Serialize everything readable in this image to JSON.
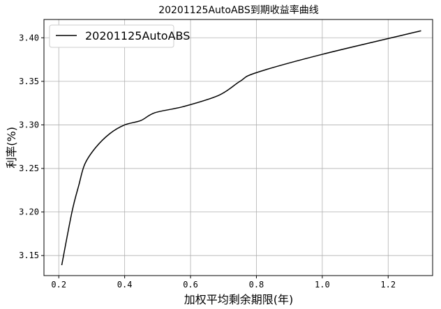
{
  "chart_data": {
    "type": "line",
    "title": "20201125AutoABS到期收益率曲线",
    "xlabel": "加权平均剩余期限(年)",
    "ylabel": "利率(%)",
    "xlim": [
      0.155,
      1.335
    ],
    "ylim": [
      3.127,
      3.421
    ],
    "xticks": [
      "0.2",
      "0.4",
      "0.6",
      "0.8",
      "1.0",
      "1.2"
    ],
    "yticks": [
      "3.15",
      "3.20",
      "3.25",
      "3.30",
      "3.35",
      "3.40"
    ],
    "grid": true,
    "legend_position": "top-left",
    "series": [
      {
        "name": "20201125AutoABS",
        "color": "#000000",
        "x": [
          0.209,
          0.24,
          0.261,
          0.279,
          0.312,
          0.355,
          0.4,
          0.449,
          0.492,
          0.578,
          0.686,
          0.75,
          0.8,
          1.0,
          1.3
        ],
        "y": [
          3.139,
          3.2,
          3.231,
          3.255,
          3.274,
          3.29,
          3.3,
          3.305,
          3.314,
          3.321,
          3.334,
          3.35,
          3.36,
          3.381,
          3.408
        ]
      }
    ]
  }
}
